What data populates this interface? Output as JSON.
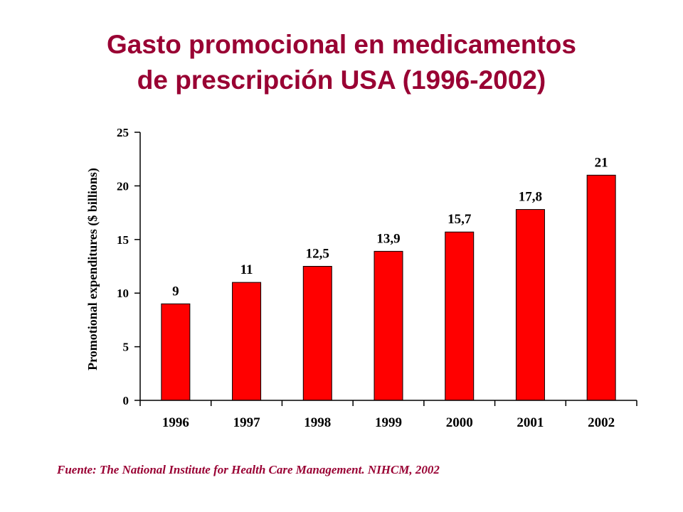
{
  "slide": {
    "title_line1": "Gasto promocional en medicamentos",
    "title_line2": "de prescripción USA (1996-2002)",
    "source": "Fuente: The National Institute for Health Care Management. NIHCM, 2002"
  },
  "chart_data": {
    "type": "bar",
    "categories": [
      "1996",
      "1997",
      "1998",
      "1999",
      "2000",
      "2001",
      "2002"
    ],
    "values": [
      9,
      11,
      12.5,
      13.9,
      15.7,
      17.8,
      21
    ],
    "data_labels": [
      "9",
      "11",
      "12,5",
      "13,9",
      "15,7",
      "17,8",
      "21"
    ],
    "ylabel": "Promotional expenditures ($ billions)",
    "xlabel": "",
    "ylim": [
      0,
      25
    ],
    "yticks": [
      0,
      5,
      10,
      15,
      20,
      25
    ],
    "grid": false,
    "bar_color": "#ff0000"
  }
}
